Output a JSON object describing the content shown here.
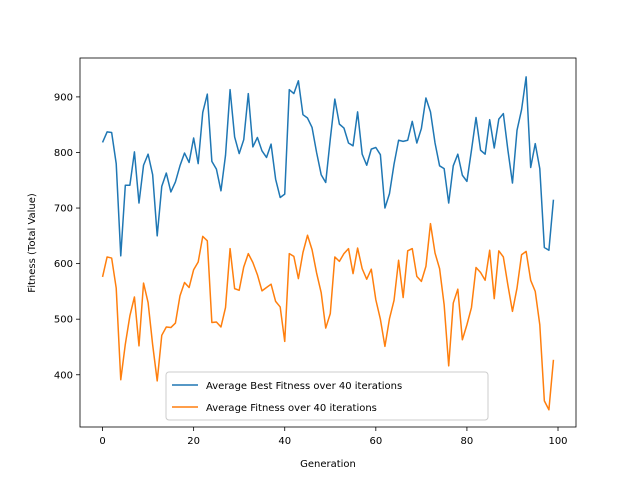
{
  "chart_data": {
    "type": "line",
    "title": "",
    "xlabel": "Generation",
    "ylabel": "Fitness (Total Value)",
    "xlim": [
      -4.95,
      103.95
    ],
    "ylim": [
      306,
      970
    ],
    "xticks": [
      0,
      20,
      40,
      60,
      80,
      100
    ],
    "yticks": [
      400,
      500,
      600,
      700,
      800,
      900
    ],
    "grid": false,
    "legend_position": "lower center",
    "x": [
      0,
      1,
      2,
      3,
      4,
      5,
      6,
      7,
      8,
      9,
      10,
      11,
      12,
      13,
      14,
      15,
      16,
      17,
      18,
      19,
      20,
      21,
      22,
      23,
      24,
      25,
      26,
      27,
      28,
      29,
      30,
      31,
      32,
      33,
      34,
      35,
      36,
      37,
      38,
      39,
      40,
      41,
      42,
      43,
      44,
      45,
      46,
      47,
      48,
      49,
      50,
      51,
      52,
      53,
      54,
      55,
      56,
      57,
      58,
      59,
      60,
      61,
      62,
      63,
      64,
      65,
      66,
      67,
      68,
      69,
      70,
      71,
      72,
      73,
      74,
      75,
      76,
      77,
      78,
      79,
      80,
      81,
      82,
      83,
      84,
      85,
      86,
      87,
      88,
      89,
      90,
      91,
      92,
      93,
      94,
      95,
      96,
      97,
      98,
      99
    ],
    "series": [
      {
        "name": "Average Best Fitness over 40 iterations",
        "color": "#1f77b4",
        "values": [
          818,
          837,
          836,
          780,
          614,
          741,
          741,
          801,
          709,
          777,
          797,
          760,
          650,
          739,
          763,
          729,
          747,
          776,
          799,
          782,
          826,
          780,
          872,
          905,
          784,
          770,
          731,
          795,
          913,
          828,
          798,
          823,
          906,
          810,
          827,
          803,
          791,
          815,
          752,
          719,
          725,
          913,
          906,
          929,
          868,
          862,
          845,
          800,
          760,
          746,
          824,
          896,
          851,
          844,
          817,
          812,
          873,
          797,
          777,
          806,
          809,
          796,
          700,
          726,
          779,
          822,
          820,
          822,
          856,
          817,
          843,
          898,
          873,
          817,
          776,
          771,
          709,
          776,
          797,
          759,
          748,
          804,
          863,
          804,
          797,
          859,
          808,
          860,
          870,
          804,
          745,
          840,
          877,
          936,
          773,
          816,
          771,
          629,
          624,
          715
        ]
      },
      {
        "name": "Average Fitness over 40 iterations",
        "color": "#ff7f0e",
        "values": [
          576,
          612,
          610,
          556,
          391,
          455,
          506,
          540,
          452,
          565,
          530,
          454,
          389,
          471,
          486,
          485,
          493,
          542,
          566,
          557,
          589,
          603,
          649,
          641,
          494,
          495,
          486,
          521,
          627,
          555,
          552,
          594,
          618,
          602,
          580,
          551,
          557,
          563,
          532,
          522,
          460,
          618,
          613,
          573,
          620,
          651,
          625,
          583,
          548,
          484,
          510,
          612,
          604,
          618,
          627,
          582,
          628,
          591,
          572,
          590,
          535,
          500,
          451,
          501,
          534,
          606,
          539,
          623,
          627,
          577,
          568,
          595,
          672,
          619,
          591,
          526,
          416,
          529,
          554,
          463,
          490,
          521,
          593,
          584,
          570,
          624,
          537,
          623,
          612,
          561,
          514,
          556,
          616,
          622,
          570,
          550,
          490,
          353,
          337,
          427
        ]
      }
    ]
  }
}
